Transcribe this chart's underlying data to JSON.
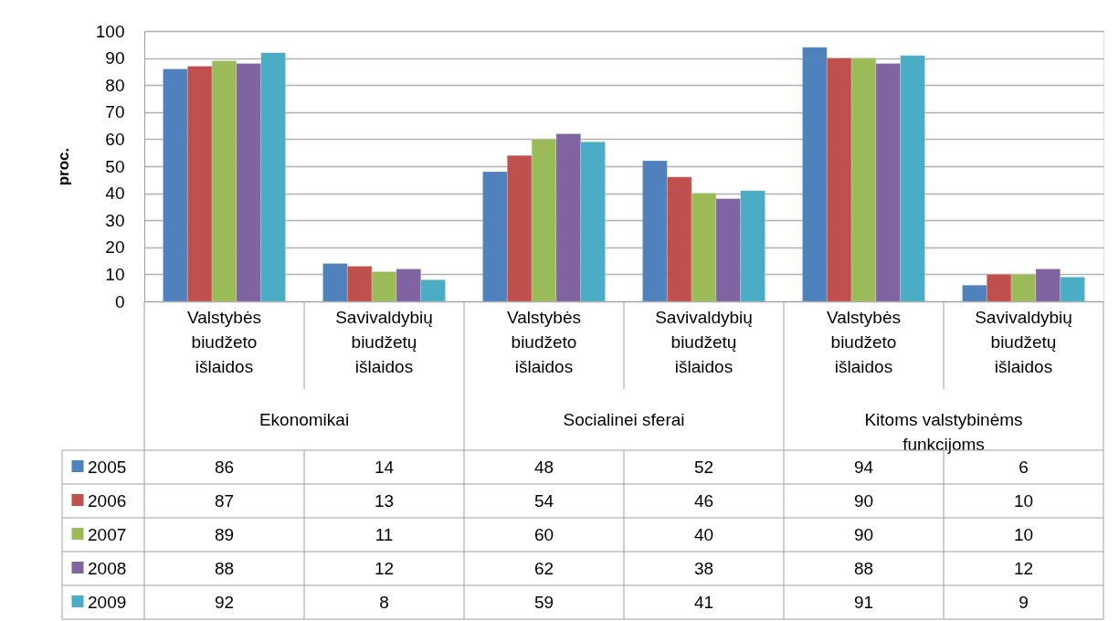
{
  "chart_data": {
    "type": "bar",
    "ylabel": "proc.",
    "categories": [
      "Valstybės biudžeto išlaidos",
      "Savivaldybių biudžetų išlaidos",
      "Valstybės biudžeto išlaidos",
      "Savivaldybių biudžetų išlaidos",
      "Valstybės biudžeto išlaidos",
      "Savivaldybių biudžetų išlaidos"
    ],
    "annotations": [
      "Ekonomikai",
      "Socialinei sferai",
      "Kitoms valstybinėms funkcijoms"
    ],
    "series": [
      {
        "name": "2005",
        "color": "#4f81bd",
        "values": [
          86,
          14,
          48,
          52,
          94,
          6
        ]
      },
      {
        "name": "2006",
        "color": "#c0504d",
        "values": [
          87,
          13,
          54,
          46,
          90,
          10
        ]
      },
      {
        "name": "2007",
        "color": "#9bbb59",
        "values": [
          89,
          11,
          60,
          40,
          90,
          10
        ]
      },
      {
        "name": "2008",
        "color": "#8064a2",
        "values": [
          88,
          12,
          62,
          38,
          88,
          12
        ]
      },
      {
        "name": "2009",
        "color": "#4bacc6",
        "values": [
          92,
          8,
          59,
          41,
          91,
          9
        ]
      }
    ],
    "ylim": [
      0,
      100
    ],
    "yticks": [
      0,
      10,
      20,
      30,
      40,
      50,
      60,
      70,
      80,
      90,
      100
    ],
    "grid": "y",
    "legend": "bottom left",
    "data_labels": true
  }
}
